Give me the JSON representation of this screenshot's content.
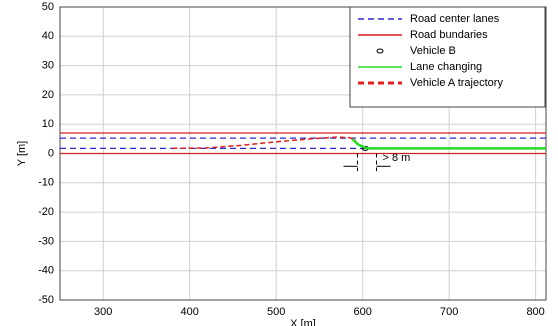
{
  "chart_data": {
    "type": "line",
    "xlabel": "X [m]",
    "ylabel": "Y [m]",
    "xlim": [
      250,
      812
    ],
    "ylim": [
      -50,
      50
    ],
    "xticks": [
      300,
      400,
      500,
      600,
      700,
      800
    ],
    "yticks": [
      -50,
      -40,
      -30,
      -20,
      -10,
      0,
      10,
      20,
      30,
      40,
      50
    ],
    "grid": true,
    "legend": "upper right",
    "series": [
      {
        "name": "Road center lanes",
        "type": "hline",
        "color": "#2a2ad0",
        "style": "dashed",
        "values": [
          1.75,
          5.25
        ]
      },
      {
        "name": "Road bundaries",
        "type": "hline",
        "color": "#d02020",
        "style": "solid",
        "values": [
          0,
          7
        ]
      },
      {
        "name": "Vehicle B",
        "type": "scatter",
        "color": "#000000",
        "x": [
          603
        ],
        "values": [
          1.75
        ]
      },
      {
        "name": "Lane changing",
        "type": "line",
        "color": "#22dd22",
        "style": "solid",
        "x": [
          588,
          595,
          605,
          812
        ],
        "values": [
          5.0,
          3.0,
          1.75,
          1.75
        ]
      },
      {
        "name": "Vehicle A trajectory",
        "type": "line",
        "color": "#e02020",
        "style": "dashed",
        "x": [
          380,
          420,
          460,
          500,
          540,
          570,
          585,
          592
        ],
        "values": [
          1.75,
          1.9,
          2.8,
          4.0,
          5.0,
          5.6,
          5.4,
          4.5
        ]
      }
    ],
    "annotation": {
      "text": "> 8 m",
      "x": [
        594,
        616
      ],
      "y": [
        0,
        -6
      ]
    }
  }
}
